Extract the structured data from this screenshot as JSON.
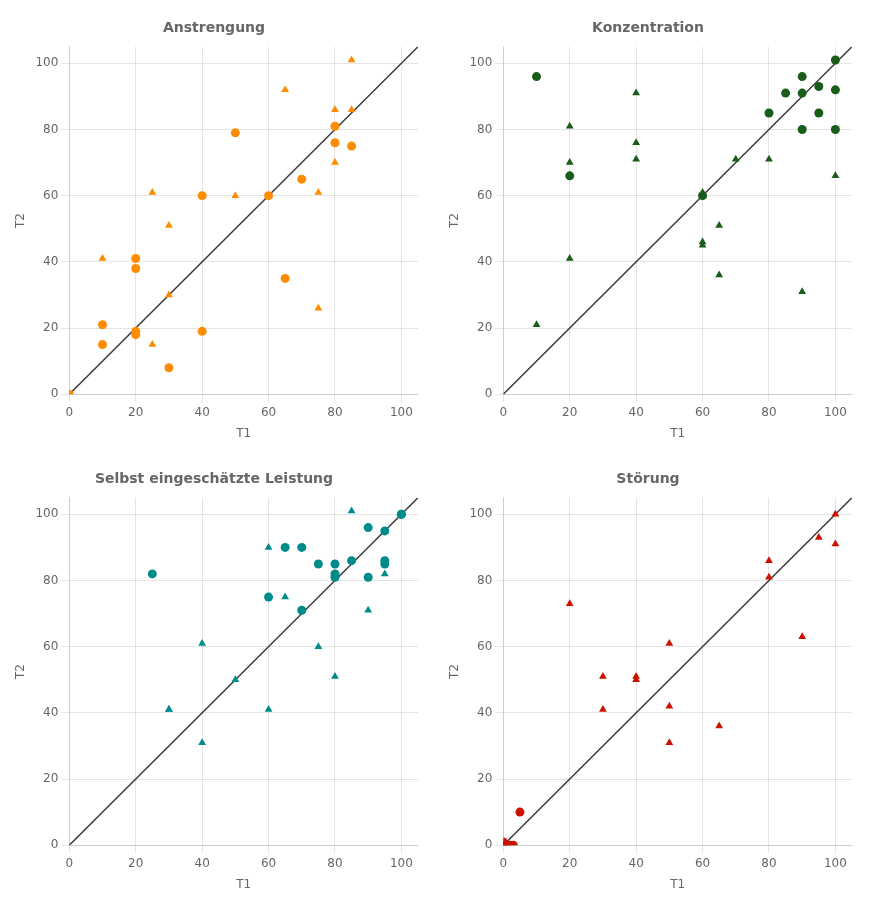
{
  "chart_data": [
    {
      "type": "scatter",
      "title": "Anstrengung",
      "xlabel": "T1",
      "ylabel": "T2",
      "xlim": [
        0,
        105
      ],
      "ylim": [
        0,
        105
      ],
      "xticks": [
        0,
        20,
        40,
        60,
        80,
        100
      ],
      "yticks": [
        0,
        20,
        40,
        60,
        80,
        100
      ],
      "grid": true,
      "series": [
        {
          "type": "line",
          "line_style": "solid",
          "color": "#3A3A3A",
          "x": [
            0,
            105
          ],
          "values": [
            0,
            105
          ]
        },
        {
          "type": "scatter",
          "marker": "circle",
          "color": "#FF8C00",
          "x": [
            0,
            10,
            10,
            20,
            20,
            20,
            20,
            30,
            40,
            40,
            50,
            60,
            65,
            70,
            80,
            80,
            85
          ],
          "values": [
            0,
            21,
            15,
            19,
            18,
            38,
            41,
            8,
            60,
            19,
            79,
            60,
            35,
            65,
            81,
            76,
            75
          ]
        },
        {
          "type": "scatter",
          "marker": "triangle",
          "color": "#FF8C00",
          "x": [
            10,
            20,
            25,
            25,
            30,
            30,
            50,
            60,
            65,
            75,
            75,
            80,
            80,
            85,
            85
          ],
          "values": [
            41,
            41,
            61,
            15,
            51,
            30,
            60,
            60,
            92,
            61,
            26,
            86,
            70,
            101,
            86
          ]
        }
      ]
    },
    {
      "type": "scatter",
      "title": "Konzentration",
      "xlabel": "T1",
      "ylabel": "T2",
      "xlim": [
        0,
        105
      ],
      "ylim": [
        0,
        105
      ],
      "xticks": [
        0,
        20,
        40,
        60,
        80,
        100
      ],
      "yticks": [
        0,
        20,
        40,
        60,
        80,
        100
      ],
      "grid": true,
      "series": [
        {
          "type": "line",
          "line_style": "solid",
          "color": "#3A3A3A",
          "x": [
            0,
            105
          ],
          "values": [
            0,
            105
          ]
        },
        {
          "type": "scatter",
          "marker": "circle",
          "color": "#1A5C1A",
          "x": [
            10,
            20,
            60,
            80,
            85,
            90,
            90,
            90,
            95,
            95,
            100,
            100,
            100
          ],
          "values": [
            96,
            66,
            60,
            85,
            91,
            96,
            80,
            91,
            93,
            85,
            80,
            101,
            92
          ]
        },
        {
          "type": "scatter",
          "marker": "triangle",
          "color": "#1A5C1A",
          "x": [
            10,
            20,
            20,
            20,
            40,
            40,
            40,
            60,
            60,
            60,
            65,
            65,
            70,
            80,
            90,
            100
          ],
          "values": [
            21,
            81,
            70,
            41,
            91,
            76,
            71,
            61,
            46,
            45,
            51,
            36,
            71,
            71,
            31,
            66
          ]
        }
      ]
    },
    {
      "type": "scatter",
      "title": "Selbst eingeschätzte Leistung",
      "xlabel": "T1",
      "ylabel": "T2",
      "xlim": [
        0,
        105
      ],
      "ylim": [
        0,
        105
      ],
      "xticks": [
        0,
        20,
        40,
        60,
        80,
        100
      ],
      "yticks": [
        0,
        20,
        40,
        60,
        80,
        100
      ],
      "grid": true,
      "series": [
        {
          "type": "line",
          "line_style": "solid",
          "color": "#3A3A3A",
          "x": [
            0,
            105
          ],
          "values": [
            0,
            105
          ]
        },
        {
          "type": "scatter",
          "marker": "circle",
          "color": "#008B8B",
          "x": [
            25,
            60,
            65,
            70,
            70,
            75,
            80,
            80,
            80,
            85,
            90,
            90,
            95,
            95,
            95,
            100,
            100
          ],
          "values": [
            82,
            75,
            90,
            90,
            71,
            85,
            81,
            82,
            85,
            86,
            96,
            81,
            95,
            86,
            85,
            100,
            100
          ]
        },
        {
          "type": "scatter",
          "marker": "triangle",
          "color": "#008B8B",
          "x": [
            30,
            30,
            40,
            40,
            50,
            60,
            60,
            65,
            70,
            75,
            80,
            80,
            85,
            90,
            95
          ],
          "values": [
            41,
            41,
            61,
            31,
            50,
            90,
            41,
            75,
            71,
            60,
            51,
            81,
            101,
            71,
            82
          ]
        }
      ]
    },
    {
      "type": "scatter",
      "title": "Störung",
      "xlabel": "T1",
      "ylabel": "T2",
      "xlim": [
        0,
        105
      ],
      "ylim": [
        0,
        105
      ],
      "xticks": [
        0,
        20,
        40,
        60,
        80,
        100
      ],
      "yticks": [
        0,
        20,
        40,
        60,
        80,
        100
      ],
      "grid": true,
      "series": [
        {
          "type": "line",
          "line_style": "solid",
          "color": "#3A3A3A",
          "x": [
            0,
            105
          ],
          "values": [
            0,
            105
          ]
        },
        {
          "type": "scatter",
          "marker": "circle",
          "color": "#CC1100",
          "x": [
            0,
            0,
            1,
            2,
            3,
            5
          ],
          "values": [
            0,
            1,
            0,
            0,
            0,
            10
          ]
        },
        {
          "type": "scatter",
          "marker": "triangle",
          "color": "#CC1100",
          "x": [
            20,
            30,
            30,
            40,
            40,
            50,
            50,
            50,
            65,
            80,
            80,
            90,
            95,
            100,
            100
          ],
          "values": [
            73,
            51,
            41,
            51,
            50,
            61,
            42,
            31,
            36,
            86,
            81,
            63,
            93,
            100,
            91
          ]
        }
      ]
    }
  ]
}
